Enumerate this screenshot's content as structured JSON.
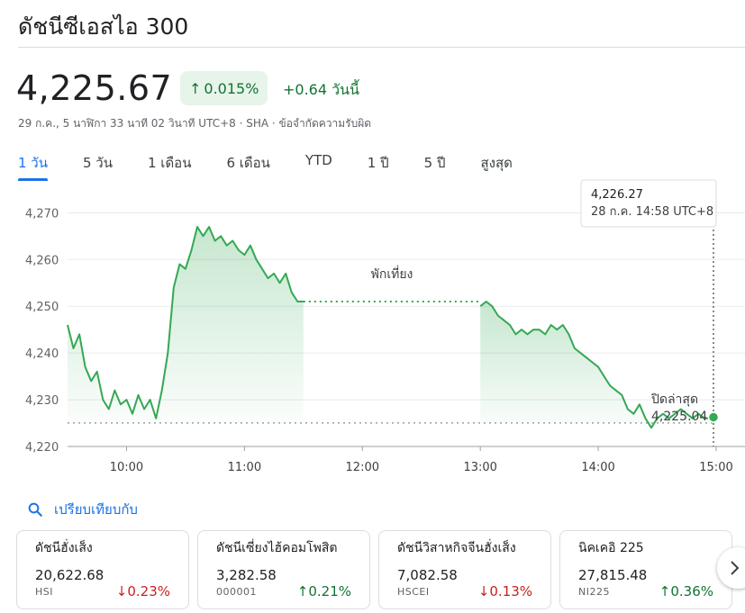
{
  "header": {
    "title": "ดัชนีซีเอสไอ 300"
  },
  "quote": {
    "price": "4,225.67",
    "percent_change": "0.015%",
    "abs_change": "+0.64 วันนี้",
    "subline": "29 ก.ค., 5 นาฬิกา 33 นาที 02 วินาที UTC+8 · SHA · ข้อจำกัดความรับผิด"
  },
  "tabs": [
    {
      "label": "1 วัน",
      "active": true
    },
    {
      "label": "5 วัน",
      "active": false
    },
    {
      "label": "1 เดือน",
      "active": false
    },
    {
      "label": "6 เดือน",
      "active": false
    },
    {
      "label": "YTD",
      "active": false
    },
    {
      "label": "1 ปี",
      "active": false
    },
    {
      "label": "5 ปี",
      "active": false
    },
    {
      "label": "สูงสุด",
      "active": false
    }
  ],
  "chart_data": {
    "type": "area",
    "y_ticks": [
      "4,270",
      "4,260",
      "4,250",
      "4,240",
      "4,230",
      "4,220"
    ],
    "x_ticks": [
      "10:00",
      "11:00",
      "12:00",
      "13:00",
      "14:00",
      "15:00"
    ],
    "ylim": [
      4220,
      4272
    ],
    "xlim": [
      "09:30",
      "15:00"
    ],
    "previous_close": 4225.04,
    "lunch_break": {
      "start": "11:30",
      "end": "13:00",
      "label": "พักเที่ยง"
    },
    "close_label": {
      "title": "ปิดล่าสุด",
      "value": "4,225.04"
    },
    "tooltip": {
      "value": "4,226.27",
      "time": "28 ก.ค. 14:58 UTC+8"
    },
    "line_color": "#34a853",
    "morning_session": [
      [
        "09:30",
        4246
      ],
      [
        "09:33",
        4241
      ],
      [
        "09:36",
        4244
      ],
      [
        "09:39",
        4237
      ],
      [
        "09:42",
        4234
      ],
      [
        "09:45",
        4236
      ],
      [
        "09:48",
        4230
      ],
      [
        "09:51",
        4228
      ],
      [
        "09:54",
        4232
      ],
      [
        "09:57",
        4229
      ],
      [
        "10:00",
        4230
      ],
      [
        "10:03",
        4227
      ],
      [
        "10:06",
        4231
      ],
      [
        "10:09",
        4228
      ],
      [
        "10:12",
        4230
      ],
      [
        "10:15",
        4226
      ],
      [
        "10:18",
        4232
      ],
      [
        "10:21",
        4240
      ],
      [
        "10:24",
        4254
      ],
      [
        "10:27",
        4259
      ],
      [
        "10:30",
        4258
      ],
      [
        "10:33",
        4262
      ],
      [
        "10:36",
        4267
      ],
      [
        "10:39",
        4265
      ],
      [
        "10:42",
        4267
      ],
      [
        "10:45",
        4264
      ],
      [
        "10:48",
        4265
      ],
      [
        "10:51",
        4263
      ],
      [
        "10:54",
        4264
      ],
      [
        "10:57",
        4262
      ],
      [
        "11:00",
        4261
      ],
      [
        "11:03",
        4263
      ],
      [
        "11:06",
        4260
      ],
      [
        "11:09",
        4258
      ],
      [
        "11:12",
        4256
      ],
      [
        "11:15",
        4257
      ],
      [
        "11:18",
        4255
      ],
      [
        "11:21",
        4257
      ],
      [
        "11:24",
        4253
      ],
      [
        "11:27",
        4251
      ],
      [
        "11:30",
        4251
      ]
    ],
    "afternoon_session": [
      [
        "13:00",
        4250
      ],
      [
        "13:03",
        4251
      ],
      [
        "13:06",
        4250
      ],
      [
        "13:09",
        4248
      ],
      [
        "13:12",
        4247
      ],
      [
        "13:15",
        4246
      ],
      [
        "13:18",
        4244
      ],
      [
        "13:21",
        4245
      ],
      [
        "13:24",
        4244
      ],
      [
        "13:27",
        4245
      ],
      [
        "13:30",
        4245
      ],
      [
        "13:33",
        4244
      ],
      [
        "13:36",
        4246
      ],
      [
        "13:39",
        4245
      ],
      [
        "13:42",
        4246
      ],
      [
        "13:45",
        4244
      ],
      [
        "13:48",
        4241
      ],
      [
        "13:51",
        4240
      ],
      [
        "13:54",
        4239
      ],
      [
        "13:57",
        4238
      ],
      [
        "14:00",
        4237
      ],
      [
        "14:03",
        4235
      ],
      [
        "14:06",
        4233
      ],
      [
        "14:09",
        4232
      ],
      [
        "14:12",
        4231
      ],
      [
        "14:15",
        4228
      ],
      [
        "14:18",
        4227
      ],
      [
        "14:21",
        4229
      ],
      [
        "14:24",
        4226
      ],
      [
        "14:27",
        4224
      ],
      [
        "14:30",
        4226
      ],
      [
        "14:33",
        4227
      ],
      [
        "14:36",
        4226
      ],
      [
        "14:39",
        4227
      ],
      [
        "14:42",
        4228
      ],
      [
        "14:45",
        4227
      ],
      [
        "14:48",
        4226
      ],
      [
        "14:51",
        4227
      ],
      [
        "14:54",
        4226
      ],
      [
        "14:57",
        4226
      ],
      [
        "14:58",
        4226.27
      ],
      [
        "15:00",
        4225.67
      ]
    ]
  },
  "compare": {
    "label": "เปรียบเทียบกับ"
  },
  "cards": [
    {
      "name": "ดัชนีฮั่งเส็ง",
      "value": "20,622.68",
      "symbol": "HSI",
      "change": "0.23%",
      "direction": "down"
    },
    {
      "name": "ดัชนีเซี่ยงไฮ้คอมโพสิต",
      "value": "3,282.58",
      "symbol": "000001",
      "change": "0.21%",
      "direction": "up"
    },
    {
      "name": "ดัชนีวิสาหกิจจีนฮั่งเส็ง",
      "value": "7,082.58",
      "symbol": "HSCEI",
      "change": "0.13%",
      "direction": "down"
    },
    {
      "name": "นิคเคอิ 225",
      "value": "27,815.48",
      "symbol": "NI225",
      "change": "0.36%",
      "direction": "up"
    }
  ],
  "colors": {
    "up": "#137333",
    "down": "#c5221f",
    "accent": "#1a73e8"
  }
}
